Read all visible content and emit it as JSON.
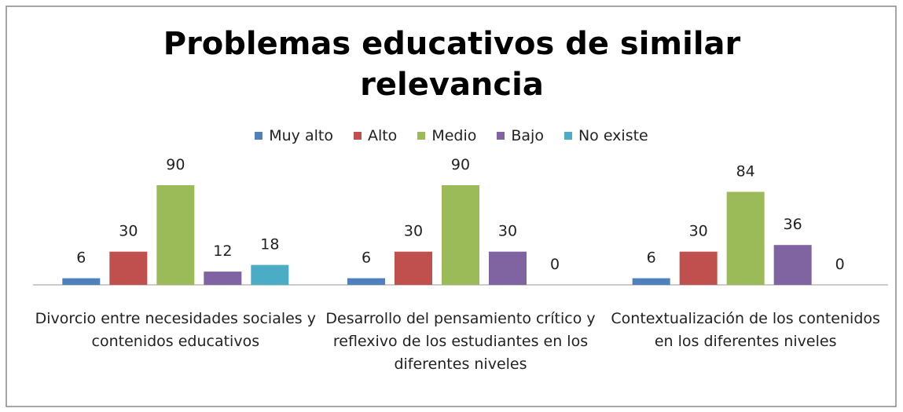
{
  "chart_data": {
    "type": "bar",
    "title": "Problemas educativos de similar relevancia",
    "categories": [
      "Divorcio entre necesidades sociales y contenidos educativos",
      "Desarrollo del pensamiento crítico y reflexivo de los estudiantes en los diferentes niveles",
      "Contextualización de los contenidos en los diferentes niveles"
    ],
    "series": [
      {
        "name": "Muy alto",
        "color": "#4f81bd",
        "values": [
          6,
          6,
          6
        ]
      },
      {
        "name": "Alto",
        "color": "#c0504d",
        "values": [
          30,
          30,
          30
        ]
      },
      {
        "name": "Medio",
        "color": "#9bbb59",
        "values": [
          90,
          90,
          84
        ]
      },
      {
        "name": "Bajo",
        "color": "#8064a2",
        "values": [
          12,
          30,
          36
        ]
      },
      {
        "name": "No existe",
        "color": "#4bacc6",
        "values": [
          18,
          0,
          0
        ]
      }
    ],
    "legend": "top"
  }
}
